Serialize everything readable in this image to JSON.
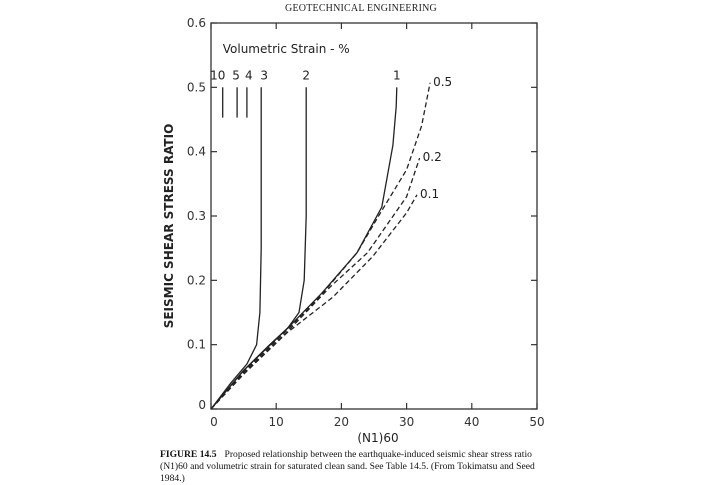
{
  "header": "GEOTECHNICAL ENGINEERING",
  "chart_data": {
    "type": "line",
    "title": "",
    "xlabel": "(N1)60",
    "ylabel": "SEISMIC SHEAR STRESS RATIO",
    "xlim": [
      0,
      50
    ],
    "ylim": [
      0,
      0.6
    ],
    "xticks": [
      "0",
      "10",
      "20",
      "30",
      "40",
      "50"
    ],
    "yticks": [
      "0",
      "0.1",
      "0.2",
      "0.3",
      "0.4",
      "0.5",
      "0.6"
    ],
    "annotation": "Volumetric Strain - %",
    "grid": false,
    "series": [
      {
        "name": "10",
        "style": "solid",
        "x": [
          1.8,
          1.8
        ],
        "y": [
          0.453,
          0.5
        ]
      },
      {
        "name": "5",
        "style": "solid",
        "x": [
          4,
          4
        ],
        "y": [
          0.453,
          0.5
        ]
      },
      {
        "name": "4",
        "style": "solid",
        "x": [
          5.5,
          5.5
        ],
        "y": [
          0.453,
          0.5
        ]
      },
      {
        "name": "3",
        "style": "solid",
        "x": [
          0,
          3,
          5.5,
          7,
          7.5,
          7.7,
          7.7
        ],
        "y": [
          0,
          0.04,
          0.07,
          0.1,
          0.15,
          0.25,
          0.5
        ]
      },
      {
        "name": "2",
        "style": "solid",
        "x": [
          0,
          5,
          9,
          11.8,
          13.5,
          14.3,
          14.6,
          14.6
        ],
        "y": [
          0,
          0.06,
          0.1,
          0.126,
          0.15,
          0.2,
          0.3,
          0.5
        ]
      },
      {
        "name": "1",
        "style": "solid",
        "x": [
          0,
          5,
          11.8,
          17,
          22.4,
          26.2,
          27.9,
          28.4,
          28.5
        ],
        "y": [
          0,
          0.06,
          0.126,
          0.18,
          0.243,
          0.314,
          0.41,
          0.47,
          0.5
        ]
      },
      {
        "name": "0.5",
        "style": "dashed",
        "x": [
          0,
          5,
          11.8,
          17,
          22.4,
          26,
          30,
          32.3,
          33.6
        ],
        "y": [
          0,
          0.058,
          0.124,
          0.178,
          0.243,
          0.305,
          0.372,
          0.44,
          0.507
        ]
      },
      {
        "name": "0.2",
        "style": "dashed",
        "x": [
          0,
          5,
          11.7,
          18.3,
          24,
          30,
          32
        ],
        "y": [
          0,
          0.056,
          0.12,
          0.19,
          0.243,
          0.33,
          0.39
        ]
      },
      {
        "name": "0.1",
        "style": "dashed",
        "x": [
          0,
          5,
          11.6,
          18.7,
          24.8,
          30,
          31.6
        ],
        "y": [
          0,
          0.054,
          0.118,
          0.174,
          0.237,
          0.305,
          0.333
        ]
      }
    ]
  },
  "caption": {
    "label": "FIGURE 14.5",
    "text": "Proposed relationship between the earthquake-induced seismic shear stress ratio (N1)60 and volumetric strain for saturated clean sand. See Table 14.5. (From Tokimatsu and Seed 1984.)"
  }
}
